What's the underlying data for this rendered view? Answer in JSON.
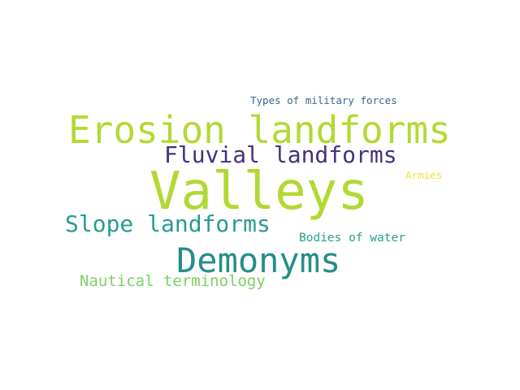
{
  "words": [
    {
      "text": "Types of military forces",
      "color": "#3b6591"
    },
    {
      "text": "Erosion landforms",
      "color": "#b3d934"
    },
    {
      "text": "Fluvial landforms",
      "color": "#45317c"
    },
    {
      "text": "Armies",
      "color": "#f0df35"
    },
    {
      "text": "Valleys",
      "color": "#b1d933"
    },
    {
      "text": "Slope landforms",
      "color": "#299b92"
    },
    {
      "text": "Bodies of water",
      "color": "#23a287"
    },
    {
      "text": "Demonyms",
      "color": "#258d8b"
    },
    {
      "text": "Nautical terminology",
      "color": "#7dd067"
    }
  ]
}
